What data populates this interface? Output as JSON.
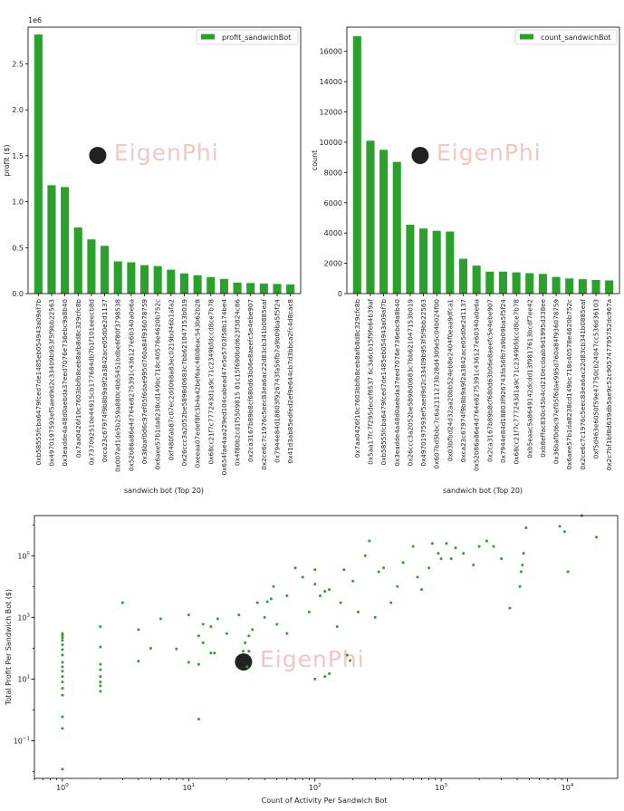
{
  "watermark": "EigenPhi",
  "colors": {
    "bar": "#2ca02c",
    "scatter": "#2ca02c",
    "watermark": "#f1c7c1"
  },
  "chart_data": [
    {
      "type": "bar",
      "legend": "profit_sandwichBot",
      "legend_position": "top-right",
      "xlabel": "sandwich bot (Top 20)",
      "ylabel": "profit ($)",
      "offset_text": "1e6",
      "ylim": [
        0,
        2.9
      ],
      "yticks": [
        "0.0",
        "0.5",
        "1.0",
        "1.5",
        "2.0",
        "2.5"
      ],
      "ytick_values": [
        0,
        0.5,
        1.0,
        1.5,
        2.0,
        2.5
      ],
      "categories": [
        "0xb58555fcba6479fced7de1485eb054943a09af7b",
        "0x4970197593ef5aed9d2c33409b953f5f9bb22563",
        "0x3eadde4a48d0aebda37eed7076e736ebc9a8b40",
        "0x7aa0426f10c7603bbfb8ceb8afb8d8c329cfc8b",
        "0x737092510e44915cb177684db7b1f101eeecb8d",
        "0xca23c67974f9b8b9a9f2a3842ace05d0e2d1137",
        "0x007ad1de5b259a880c4bb5451bdbe6f80f3798538",
        "0x52b86a86e4d764e8275391c436127e60340a0e6a",
        "0x36baf0d6c97ef05f6dae995d760a84f936078759",
        "0x6aee57b1da8238cd149bc718c40578e4620b752c",
        "0xf480fab87c07ec2dd068a83ec0219bd46b1afa2",
        "0x26ccc3a2052be5898d0683c7bb621047153b019",
        "0xeeaa07edef8fc5b4a42bef6ac4808eac543b62b28",
        "0x68cc21f7c777243d1a9c71c2349bfdccd8ce7b78",
        "0x654fae4aa229ed104cabead47e5e5703f58b174be4",
        "0x4f80b2cd1f5509815 81c15f690bdd623f3824c86",
        "0x2ca3167b89b8cf680d63b06e8aeefc5e4ebe907",
        "0x2ce6c7c1976c5eec83ea6ac22d83cb341b0885eaf",
        "0x7944e84d18803f926743fa56fb7a9b09ba5f5f24",
        "0x41d3ab85edfed2ef9e644cb7d3bbca2fc4d8cac8"
      ],
      "values": [
        2.82,
        1.18,
        1.16,
        0.72,
        0.59,
        0.52,
        0.35,
        0.34,
        0.31,
        0.3,
        0.26,
        0.22,
        0.2,
        0.18,
        0.16,
        0.12,
        0.115,
        0.11,
        0.105,
        0.1
      ]
    },
    {
      "type": "bar",
      "legend": "count_sandwichBot",
      "legend_position": "top-right",
      "xlabel": "sandwich bot (Top 20)",
      "ylabel": "count",
      "ylim": [
        0,
        17600
      ],
      "yticks": [
        "0",
        "2000",
        "4000",
        "6000",
        "8000",
        "10000",
        "12000",
        "14000",
        "16000"
      ],
      "ytick_values": [
        0,
        2000,
        4000,
        6000,
        8000,
        10000,
        12000,
        14000,
        16000
      ],
      "categories": [
        "0x7aa0426f10c7603bbfb8ceb8afb8d8c329cfc8b",
        "0x5aa17fc7f295decef8537 6c3a6cb15f9fe64b39af",
        "0xb58555fcba6479fced7de1485eb054943a09af7b",
        "0x3eadde4a48d0aebda37eed7076e736ebc9a8b40",
        "0x26ccc3a2052be5898d0683c7bb621047153b019",
        "0x4970197593ef5aed9d2c33409b953f5f9bb22563",
        "0x607bd5bbc7c6a2111273b28d4309e5c04b024f00",
        "0x03bfbd24d32aa20bb524eb8e2404f0eaa9dfca1",
        "0xca23c67974f9b8b9a9f2a3842ace05d0e2d1137",
        "0x52b86a86e4d764e8275391c436127e60340a0e6a",
        "0x2ca3167b89b8cf680d63b06e8aeefc5e4ebe907",
        "0x7944e84d18803f926743fa56fb7a9b09ba5f5f24",
        "0x68cc21f7c777243d1a9c71c2349bfdccd8ce7b78",
        "0xb5eaac5a8649142dcdd13f9817613bcdf7ee42",
        "0xb8effac830c45b4cd210ecdaab9d1995d338ee",
        "0x36baf0d6c97ef05f6dae995d760a84f936078759",
        "0x6aee57b1da8238cd149bc718c40578e4620b752c",
        "0x2ce6c7c1976c5eec83ea6ac22d83cb341b0885eaf",
        "0xf5d463e6050f59e47750cb24047cc536d36103",
        "0x2c7bf1bf8d639db5ae9c52c905747795752dc967a"
      ],
      "values": [
        17000,
        10100,
        9500,
        8700,
        4550,
        4300,
        4150,
        4100,
        2300,
        1850,
        1450,
        1450,
        1400,
        1350,
        1300,
        1100,
        1000,
        950,
        900,
        870
      ]
    },
    {
      "type": "scatter",
      "xlabel": "Count of Activity Per Sandwich Bot",
      "ylabel": "Total Profit Per Sandwich Bot ($)",
      "xscale": "log",
      "yscale": "log",
      "xlim": [
        0.6,
        25000
      ],
      "ylim": [
        0.006,
        2000000
      ],
      "xticks": [
        {
          "value": 1,
          "base": "10",
          "exp": "0"
        },
        {
          "value": 10,
          "base": "10",
          "exp": "1"
        },
        {
          "value": 100,
          "base": "10",
          "exp": "2"
        },
        {
          "value": 1000,
          "base": "10",
          "exp": "3"
        },
        {
          "value": 10000,
          "base": "10",
          "exp": "4"
        }
      ],
      "yticks": [
        {
          "value": 0.1,
          "base": "10",
          "exp": "−1"
        },
        {
          "value": 10,
          "base": "10",
          "exp": "1"
        },
        {
          "value": 1000,
          "base": "10",
          "exp": "3"
        },
        {
          "value": 100000,
          "base": "10",
          "exp": "5"
        }
      ],
      "points": [
        [
          1,
          0.012
        ],
        [
          1,
          0.25
        ],
        [
          1,
          0.6
        ],
        [
          1,
          3
        ],
        [
          1,
          5
        ],
        [
          1,
          8
        ],
        [
          1,
          12
        ],
        [
          1,
          18
        ],
        [
          1,
          25
        ],
        [
          1,
          35
        ],
        [
          1,
          60
        ],
        [
          1,
          90
        ],
        [
          1,
          130
        ],
        [
          1,
          180
        ],
        [
          1,
          220
        ],
        [
          1,
          260
        ],
        [
          1,
          300
        ],
        [
          2,
          4
        ],
        [
          2,
          6
        ],
        [
          2,
          8
        ],
        [
          2,
          12
        ],
        [
          2,
          20
        ],
        [
          2,
          30
        ],
        [
          2,
          110
        ],
        [
          2,
          500
        ],
        [
          3,
          3000
        ],
        [
          4,
          38
        ],
        [
          4,
          400
        ],
        [
          5,
          100
        ],
        [
          6,
          900
        ],
        [
          8,
          95
        ],
        [
          10,
          35
        ],
        [
          10,
          1200
        ],
        [
          12,
          0.5
        ],
        [
          12,
          30
        ],
        [
          12,
          250
        ],
        [
          13,
          150
        ],
        [
          13,
          600
        ],
        [
          15,
          70
        ],
        [
          15,
          500
        ],
        [
          16,
          70
        ],
        [
          17,
          900
        ],
        [
          20,
          300
        ],
        [
          25,
          1200
        ],
        [
          27,
          80
        ],
        [
          28,
          150
        ],
        [
          29,
          25
        ],
        [
          30,
          80
        ],
        [
          30,
          250
        ],
        [
          32,
          400
        ],
        [
          35,
          3000
        ],
        [
          40,
          1000
        ],
        [
          42,
          3200
        ],
        [
          45,
          4000
        ],
        [
          47,
          10000
        ],
        [
          50,
          600
        ],
        [
          60,
          5000
        ],
        [
          60,
          300
        ],
        [
          70,
          40000
        ],
        [
          80,
          20000
        ],
        [
          90,
          1500
        ],
        [
          100,
          35000
        ],
        [
          100,
          12000
        ],
        [
          110,
          5000
        ],
        [
          120,
          7000
        ],
        [
          130,
          8000
        ],
        [
          150,
          500
        ],
        [
          160,
          3000
        ],
        [
          170,
          35000
        ],
        [
          200,
          15000
        ],
        [
          250,
          100000
        ],
        [
          270,
          300000
        ],
        [
          190,
          40
        ],
        [
          220,
          1500
        ],
        [
          300,
          1000
        ],
        [
          320,
          30000
        ],
        [
          350,
          40000
        ],
        [
          400,
          3000
        ],
        [
          450,
          10000
        ],
        [
          500,
          60000
        ],
        [
          600,
          200000
        ],
        [
          650,
          20000
        ],
        [
          700,
          8000
        ],
        [
          800,
          40000
        ],
        [
          100,
          10
        ],
        [
          120,
          12
        ],
        [
          130,
          15
        ],
        [
          180,
          60
        ],
        [
          850,
          250000
        ],
        [
          950,
          120000
        ],
        [
          1000,
          80000
        ],
        [
          1100,
          250000
        ],
        [
          1200,
          80000
        ],
        [
          1300,
          180000
        ],
        [
          1500,
          120000
        ],
        [
          1800,
          50000
        ],
        [
          2000,
          200000
        ],
        [
          2300,
          300000
        ],
        [
          2600,
          200000
        ],
        [
          3000,
          80000
        ],
        [
          3500,
          2000
        ],
        [
          4200,
          10000
        ],
        [
          4300,
          30000
        ],
        [
          4400,
          50000
        ],
        [
          4500,
          120000
        ],
        [
          4700,
          800000
        ],
        [
          8700,
          900000
        ],
        [
          9500,
          600000
        ],
        [
          10100,
          30000
        ],
        [
          17000,
          400000
        ],
        [
          13000,
          2000000
        ]
      ]
    }
  ]
}
